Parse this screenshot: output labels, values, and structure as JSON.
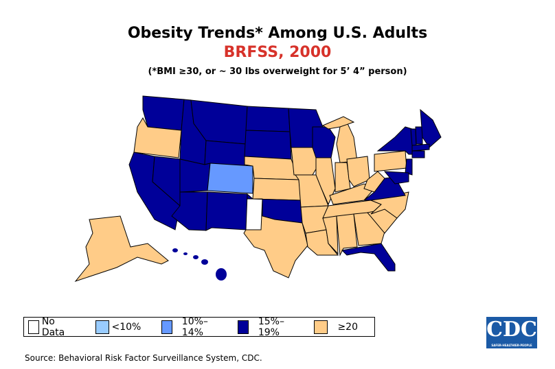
{
  "title": "Obesity Trends* Among U.S. Adults",
  "subtitle": "BRFSS, 2000",
  "note": "(*BMI ≥30, or ~ 30 lbs overweight for 5’ 4” person)",
  "source": "Source: Behavioral Risk Factor Surveillance System, CDC.",
  "logo": {
    "text": "CDC",
    "tagline": "SAFER·HEALTHIER·PEOPLE"
  },
  "chart_data": {
    "type": "choropleth",
    "title": "Obesity Trends* Among U.S. Adults",
    "year": 2000,
    "legend": [
      {
        "key": "nodata",
        "label": "No Data",
        "color": "#ffffff"
      },
      {
        "key": "lt10",
        "label": "<10%",
        "color": "#99ccff"
      },
      {
        "key": "10_14",
        "label": "10%–14%",
        "color": "#6699ff"
      },
      {
        "key": "15_19",
        "label": "15%–19%",
        "color": "#000099"
      },
      {
        "key": "ge20",
        "label": "≥20",
        "color": "#ffcc88"
      }
    ],
    "states": {
      "WA": "15_19",
      "OR": "ge20",
      "CA": "15_19",
      "NV": "15_19",
      "ID": "15_19",
      "MT": "15_19",
      "WY": "15_19",
      "UT": "15_19",
      "CO": "10_14",
      "AZ": "15_19",
      "NM": "15_19",
      "ND": "15_19",
      "SD": "15_19",
      "NE": "ge20",
      "KS": "ge20",
      "OK": "15_19",
      "TX": "ge20",
      "MN": "15_19",
      "IA": "ge20",
      "MO": "ge20",
      "AR": "ge20",
      "LA": "ge20",
      "WI": "15_19",
      "IL": "ge20",
      "MI": "ge20",
      "IN": "ge20",
      "OH": "ge20",
      "KY": "ge20",
      "TN": "ge20",
      "MS": "ge20",
      "AL": "ge20",
      "GA": "ge20",
      "FL": "15_19",
      "SC": "ge20",
      "NC": "ge20",
      "VA": "15_19",
      "WV": "ge20",
      "PA": "ge20",
      "NY": "15_19",
      "VT": "15_19",
      "NH": "15_19",
      "ME": "15_19",
      "MA": "15_19",
      "CT": "15_19",
      "NJ": "15_19",
      "MD": "15_19",
      "AK": "ge20",
      "HI": "15_19"
    }
  }
}
